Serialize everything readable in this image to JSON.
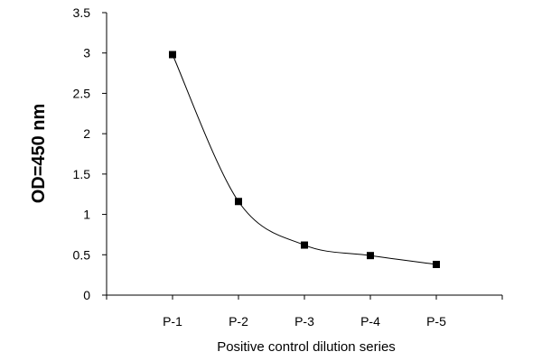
{
  "chart_data": {
    "type": "line",
    "title": "",
    "xlabel": "Positive control dilution series",
    "ylabel": "OD=450 nm",
    "categories": [
      "P-1",
      "P-2",
      "P-3",
      "P-4",
      "P-5"
    ],
    "series": [
      {
        "values": [
          2.98,
          1.16,
          0.62,
          0.49,
          0.38
        ]
      }
    ],
    "ylim": [
      0,
      3.5
    ],
    "yticks": [
      0,
      0.5,
      1,
      1.5,
      2,
      2.5,
      3,
      3.5
    ],
    "ytick_labels": [
      "0",
      "0.5",
      "1",
      "1.5",
      "2",
      "2.5",
      "3",
      "3.5"
    ],
    "grid": false,
    "legend": "none",
    "line_style": "smooth",
    "marker": "square",
    "colors": {
      "line": "#000000",
      "marker": "#000000",
      "axis": "#000000"
    }
  }
}
